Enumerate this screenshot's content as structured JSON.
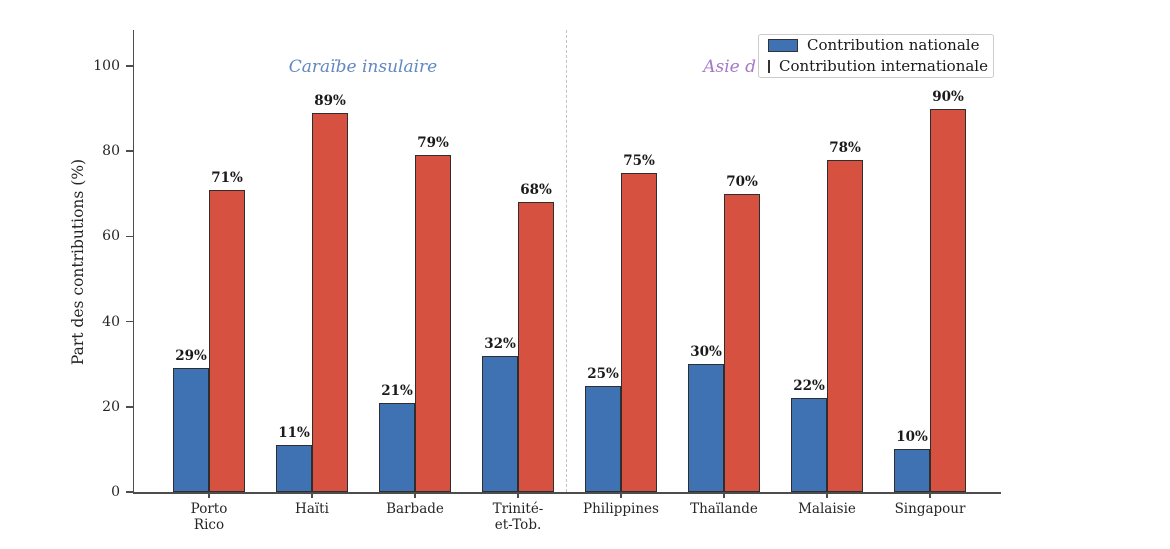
{
  "chart_data": {
    "type": "bar",
    "categories": [
      "Porto\nRico",
      "Haïti",
      "Barbade",
      "Trinité-\net-Tob.",
      "Philippines",
      "Thaïlande",
      "Malaisie",
      "Singapour"
    ],
    "series": [
      {
        "name": "Contribution nationale",
        "color": "#3e72b2",
        "values": [
          29,
          11,
          21,
          32,
          25,
          30,
          22,
          10
        ]
      },
      {
        "name": "Contribution internationale",
        "color": "#d6513f",
        "values": [
          71,
          89,
          79,
          68,
          75,
          70,
          78,
          90
        ]
      }
    ],
    "ylabel": "Part des contributions (%)",
    "yticks": [
      0,
      20,
      40,
      60,
      80,
      100
    ],
    "ylim": [
      0,
      108
    ],
    "value_label_suffix": "%",
    "grid": false,
    "legend_position": "top-right",
    "group_labels": [
      {
        "text": "Caraïbe insulaire",
        "color": "#6288c0"
      },
      {
        "text": "Asie d",
        "color": "#a678c8"
      }
    ],
    "divider_after_category_index": 3
  }
}
